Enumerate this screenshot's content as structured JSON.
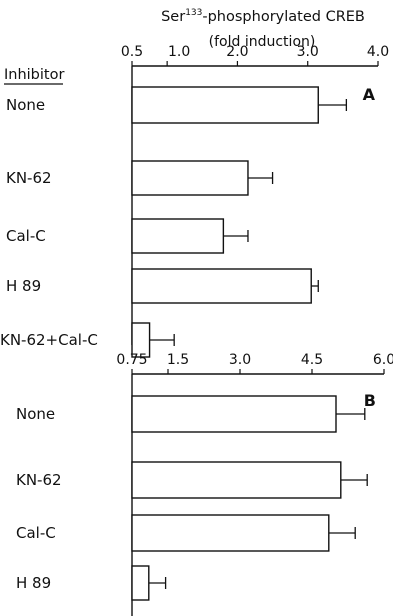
{
  "chart_data": [
    {
      "type": "bar",
      "orientation": "horizontal",
      "panel_label": "A",
      "title_prefix": "Ser",
      "title_superscript": "133",
      "title_suffix": "-phosphorylated CREB",
      "subtitle": "(fold induction)",
      "row_header": "Inhibitor",
      "categories": [
        "None",
        "KN-62",
        "Cal-C",
        "H 89",
        "KN-62+Cal-C"
      ],
      "values": [
        3.15,
        2.15,
        1.8,
        3.05,
        0.75
      ],
      "errors": [
        0.4,
        0.35,
        0.35,
        0.1,
        0.35
      ],
      "xlim": [
        0.5,
        4.0
      ],
      "ticks": [
        0.5,
        1.0,
        2.0,
        3.0,
        4.0
      ],
      "tick_labels": [
        "0.5",
        "1.0",
        "2.0",
        "3.0",
        "4.0"
      ]
    },
    {
      "type": "bar",
      "orientation": "horizontal",
      "panel_label": "B",
      "categories": [
        "None",
        "KN-62",
        "Cal-C",
        "H 89"
      ],
      "values": [
        5.0,
        5.1,
        4.85,
        1.1
      ],
      "errors": [
        0.6,
        0.55,
        0.55,
        0.35
      ],
      "xlim": [
        0.75,
        6.0
      ],
      "ticks": [
        0.75,
        1.5,
        3.0,
        4.5,
        6.0
      ],
      "tick_labels": [
        "0.75",
        "1.5",
        "3.0",
        "4.5",
        "6.0"
      ]
    }
  ]
}
